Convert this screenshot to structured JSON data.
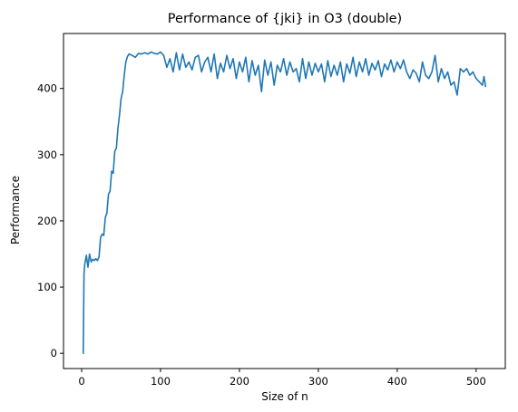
{
  "chart_data": {
    "type": "line",
    "title": "Performance of {jki} in O3 (double)",
    "xlabel": "Size of n",
    "ylabel": "Performance",
    "xlim": [
      -23,
      537
    ],
    "ylim": [
      -23,
      483
    ],
    "xticks": [
      0,
      100,
      200,
      300,
      400,
      500
    ],
    "yticks": [
      0,
      100,
      200,
      300,
      400
    ],
    "grid": false,
    "legend": "none",
    "series": [
      {
        "color": "#1f77b4",
        "x": [
          2,
          3,
          4,
          6,
          8,
          10,
          12,
          14,
          16,
          18,
          20,
          22,
          24,
          26,
          28,
          30,
          32,
          34,
          36,
          38,
          40,
          42,
          44,
          46,
          48,
          50,
          52,
          54,
          56,
          58,
          60,
          64,
          68,
          72,
          76,
          80,
          84,
          88,
          92,
          96,
          100,
          104,
          108,
          112,
          116,
          120,
          124,
          128,
          132,
          136,
          140,
          144,
          148,
          152,
          156,
          160,
          164,
          168,
          172,
          176,
          180,
          184,
          188,
          192,
          196,
          200,
          204,
          208,
          212,
          216,
          220,
          224,
          228,
          232,
          236,
          240,
          244,
          248,
          252,
          256,
          260,
          264,
          268,
          272,
          276,
          280,
          284,
          288,
          292,
          296,
          300,
          304,
          308,
          312,
          316,
          320,
          324,
          328,
          332,
          336,
          340,
          344,
          348,
          352,
          356,
          360,
          364,
          368,
          372,
          376,
          380,
          384,
          388,
          392,
          396,
          400,
          404,
          408,
          412,
          416,
          420,
          424,
          428,
          432,
          436,
          440,
          444,
          448,
          452,
          456,
          460,
          464,
          468,
          472,
          476,
          480,
          484,
          488,
          492,
          496,
          500,
          504,
          508,
          510,
          512
        ],
        "y": [
          0,
          120,
          135,
          148,
          130,
          150,
          138,
          142,
          140,
          143,
          140,
          145,
          175,
          180,
          178,
          205,
          212,
          240,
          245,
          275,
          272,
          305,
          310,
          340,
          360,
          385,
          395,
          420,
          440,
          448,
          452,
          450,
          447,
          453,
          452,
          454,
          452,
          455,
          453,
          452,
          455,
          450,
          432,
          445,
          425,
          454,
          428,
          452,
          432,
          440,
          428,
          447,
          450,
          425,
          440,
          447,
          425,
          452,
          415,
          438,
          425,
          450,
          430,
          445,
          415,
          440,
          425,
          447,
          410,
          442,
          420,
          435,
          395,
          443,
          420,
          440,
          405,
          435,
          425,
          445,
          420,
          440,
          425,
          430,
          410,
          445,
          415,
          440,
          420,
          438,
          425,
          437,
          410,
          442,
          418,
          435,
          420,
          440,
          410,
          437,
          423,
          447,
          418,
          440,
          425,
          445,
          420,
          438,
          428,
          442,
          418,
          437,
          428,
          443,
          425,
          440,
          430,
          443,
          425,
          415,
          428,
          423,
          410,
          440,
          420,
          415,
          425,
          450,
          410,
          430,
          415,
          425,
          405,
          410,
          390,
          430,
          425,
          430,
          420,
          425,
          415,
          410,
          405,
          418,
          403
        ]
      }
    ]
  }
}
